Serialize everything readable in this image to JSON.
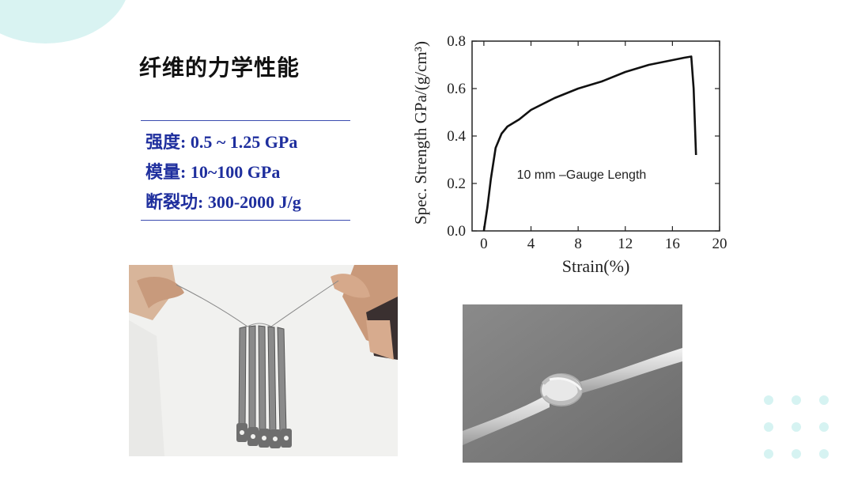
{
  "slide": {
    "title": "纤维的力学性能",
    "properties": [
      "强度: 0.5 ~ 1.25 GPa",
      "模量: 10~100 GPa",
      "断裂功: 300-2000 J/g"
    ]
  },
  "colors": {
    "accent_teal": "#d9f3f2",
    "property_text": "#1f2f9e",
    "curve": "#111111"
  },
  "chart_data": {
    "type": "line",
    "title": "",
    "xlabel": "Strain(%)",
    "ylabel": "Spec. Strength GPa/(g/cm³)",
    "xlim": [
      -1,
      20
    ],
    "ylim": [
      0,
      0.8
    ],
    "xticks": [
      0,
      4,
      8,
      12,
      16,
      20
    ],
    "yticks": [
      0.0,
      0.2,
      0.4,
      0.6,
      0.8
    ],
    "xtick_labels": [
      "0",
      "4",
      "8",
      "12",
      "16",
      "20"
    ],
    "ytick_labels": [
      "0.0",
      "0.2",
      "0.4",
      "0.6",
      "0.8"
    ],
    "annotation": "10 mm –Gauge Length",
    "grid": false,
    "series": [
      {
        "x": [
          0,
          0.3,
          0.6,
          1.0,
          1.5,
          2.0,
          3.0,
          4.0,
          6.0,
          8.0,
          10.0,
          12.0,
          14.0,
          16.0,
          17.0,
          17.6,
          17.8,
          18.0
        ],
        "y": [
          0.0,
          0.1,
          0.22,
          0.35,
          0.41,
          0.44,
          0.47,
          0.51,
          0.56,
          0.6,
          0.63,
          0.67,
          0.7,
          0.72,
          0.73,
          0.735,
          0.6,
          0.32
        ]
      }
    ]
  },
  "images": {
    "hands_photo": "hands stretching a thin fiber holding several metal pliers",
    "sem_photo": "SEM micrograph of a knotted fiber"
  }
}
